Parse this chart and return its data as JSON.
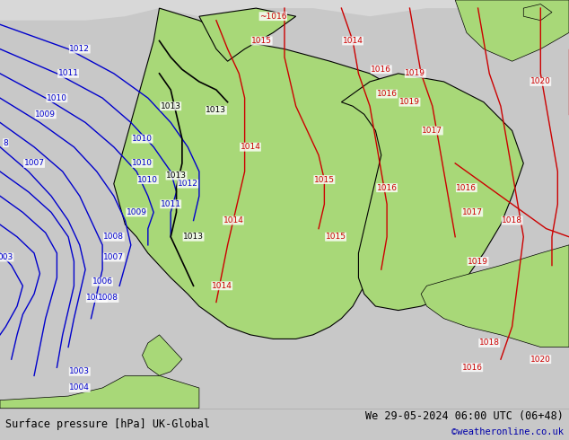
{
  "title_left": "Surface pressure [hPa] UK-Global",
  "title_right": "We 29-05-2024 06:00 UTC (06+48)",
  "watermark": "©weatheronline.co.uk",
  "bg_color": "#c8c8c8",
  "land_color_green": "#a8d878",
  "land_color_gray": "#d0d0d0",
  "sea_color": "#c8c8c8",
  "isobar_blue_color": "#0000cc",
  "isobar_red_color": "#cc0000",
  "isobar_black_color": "#000000",
  "bottom_bar_color": "#e8e8e8",
  "bottom_text_color": "#000000",
  "bottom_bar_height": 0.072,
  "fig_width": 6.34,
  "fig_height": 4.9,
  "dpi": 100
}
